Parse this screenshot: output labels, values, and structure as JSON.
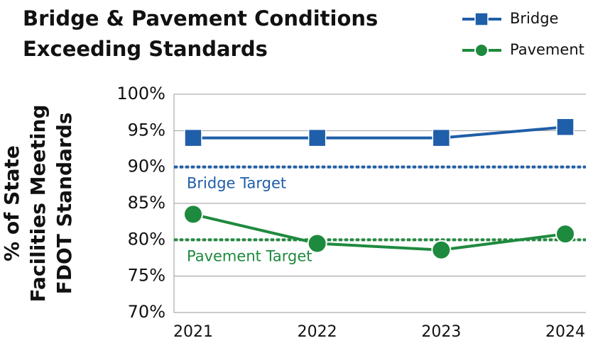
{
  "chart_data": {
    "type": "line",
    "title": [
      "Bridge & Pavement Conditions",
      "Exceeding Standards"
    ],
    "ylabel": [
      "% of State",
      "Facilities Meeting",
      "FDOT Standards"
    ],
    "categories": [
      "2021",
      "2022",
      "2023",
      "2024"
    ],
    "series": [
      {
        "name": "Bridge",
        "color": "#1f5ea8",
        "marker": "square",
        "values": [
          94,
          94,
          94,
          95.5
        ]
      },
      {
        "name": "Pavement",
        "color": "#1e8a3e",
        "marker": "circle",
        "values": [
          83.5,
          79.5,
          78.6,
          80.8
        ]
      }
    ],
    "targets": [
      {
        "name": "Bridge Target",
        "value": 90,
        "color": "#1f5ea8"
      },
      {
        "name": "Pavement Target",
        "value": 80,
        "color": "#1e8a3e"
      }
    ],
    "ylim": [
      70,
      100
    ],
    "yticks": [
      {
        "value": 70,
        "label": "70%"
      },
      {
        "value": 75,
        "label": "75%"
      },
      {
        "value": 80,
        "label": "80%"
      },
      {
        "value": 85,
        "label": "85%"
      },
      {
        "value": 90,
        "label": "90%"
      },
      {
        "value": 95,
        "label": "95%"
      },
      {
        "value": 100,
        "label": "100%"
      }
    ],
    "grid": true,
    "legend": "top-right"
  }
}
